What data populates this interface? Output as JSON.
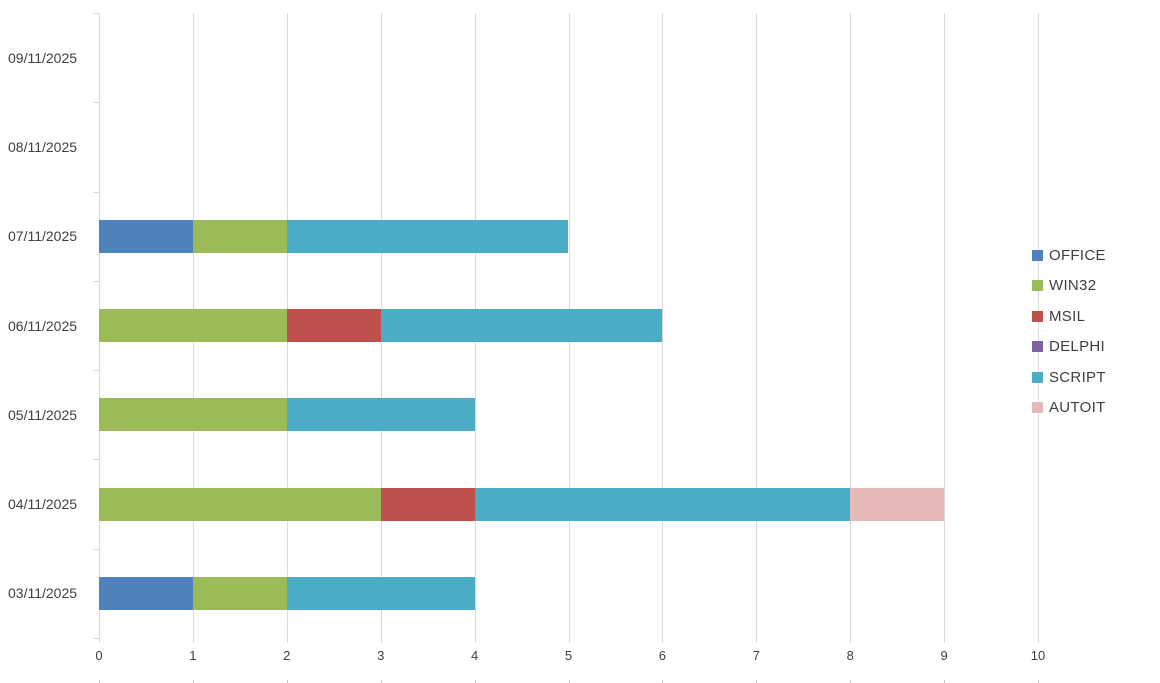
{
  "chart_data": {
    "type": "bar",
    "orientation": "horizontal",
    "stacked": true,
    "title": "",
    "xlabel": "",
    "ylabel": "",
    "grid": "vertical",
    "legend_position": "right",
    "xlim": [
      0,
      10
    ],
    "x_ticks": [
      "0",
      "1",
      "2",
      "3",
      "4",
      "5",
      "6",
      "7",
      "8",
      "9",
      "10"
    ],
    "categories_top_to_bottom": [
      "09/11/2025",
      "08/11/2025",
      "07/11/2025",
      "06/11/2025",
      "05/11/2025",
      "04/11/2025",
      "03/11/2025"
    ],
    "series": [
      {
        "name": "OFFICE",
        "color": "#4F81BD",
        "values": [
          0,
          0,
          1,
          0,
          0,
          0,
          1
        ]
      },
      {
        "name": "WIN32",
        "color": "#9BBB59",
        "values": [
          0,
          0,
          1,
          2,
          2,
          3,
          1
        ]
      },
      {
        "name": "MSIL",
        "color": "#C0504D",
        "values": [
          0,
          0,
          0,
          1,
          0,
          1,
          0
        ]
      },
      {
        "name": "DELPHI",
        "color": "#8064A2",
        "values": [
          0,
          0,
          0,
          0,
          0,
          0,
          0
        ]
      },
      {
        "name": "SCRIPT",
        "color": "#4BACC6",
        "values": [
          0,
          0,
          3,
          3,
          2,
          4,
          2
        ]
      },
      {
        "name": "AUTOIT",
        "color": "#E6B9B8",
        "values": [
          0,
          0,
          0,
          0,
          0,
          1,
          0
        ]
      }
    ],
    "category_totals_top_to_bottom": [
      0,
      0,
      5,
      6,
      4,
      9,
      4
    ]
  },
  "colors": {
    "background": "#FFFFFF",
    "gridline": "#D9D9D9",
    "axis_text": "#404040",
    "legend_text": "#404040"
  }
}
